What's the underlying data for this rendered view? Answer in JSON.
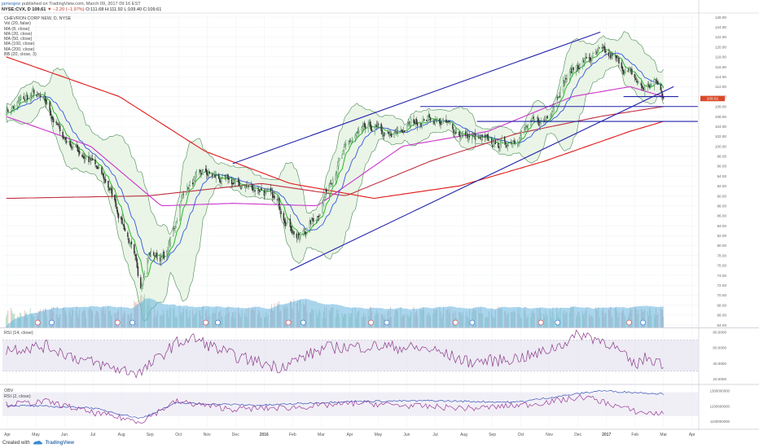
{
  "header": {
    "user": "jamesjew",
    "published": "published on TradingView.com, March 09, 2017 09:16 EST",
    "ticker_line_prefix": "NYSE:CVX, D 109.61",
    "change": "▼ −2.20 (−1.97%)",
    "ohlc": "O:111.68 H:111.92 L:109.40 C:109.61"
  },
  "indicators": [
    "CHEVRON CORP NEW, D, NYSE",
    "Vol (20, false)",
    "MA (8, close)",
    "MA (20, close)",
    "MA (50, close)",
    "MA (100, close)",
    "MA (200, close)",
    "BB (20, close, 3)"
  ],
  "panels": {
    "rsi14_label": "RSI (14, close)",
    "obv_label": "OBV",
    "rsi2_label": "RSI (2, close)"
  },
  "footer": {
    "created_with": "Created with",
    "brand": "TradingView"
  },
  "colors": {
    "ma8": "#2db32d",
    "ma20": "#3355dd",
    "ma50": "#cc33cc",
    "ma100": "#c03040",
    "ma200": "#e01818",
    "bb": "#4a8a55",
    "bb_fill": "#e3f1df",
    "channel": "#2222aa",
    "volume": "#64b2df",
    "rsi": "#8a3a8a",
    "band": "#e6e2ef",
    "price_tag": "#d94a2a",
    "up": "#2d7a3d",
    "down": "#333333"
  },
  "chart_data": [
    {
      "type": "line",
      "title": "CHEVRON CORP NEW, D, NYSE",
      "x_ticks": [
        "Apr",
        "May",
        "Jun",
        "Jul",
        "Aug",
        "Sep",
        "Oct",
        "Nov",
        "Dec",
        "2016",
        "Feb",
        "Mar",
        "Apr",
        "May",
        "Jun",
        "Jul",
        "Aug",
        "Sep",
        "Oct",
        "Nov",
        "Dec",
        "2017",
        "Feb",
        "Mar",
        "Apr"
      ],
      "y_ticks": [
        64.0,
        66.0,
        68.0,
        70.0,
        72.0,
        74.0,
        76.0,
        78.0,
        80.0,
        82.0,
        84.0,
        86.0,
        88.0,
        90.0,
        92.0,
        94.0,
        96.0,
        98.0,
        100.0,
        102.0,
        104.0,
        106.0,
        108.0,
        110.0,
        112.0,
        114.0,
        116.0,
        118.0,
        120.0,
        122.0,
        124.0,
        126.0
      ],
      "ylim": [
        63.5,
        126.5
      ],
      "last_price": "109.61",
      "price_series": {
        "name": "CVX close (approx.)",
        "x": [
          "2015-04-01",
          "2015-05-01",
          "2015-05-15",
          "2015-06-01",
          "2015-07-01",
          "2015-07-20",
          "2015-08-10",
          "2015-08-24",
          "2015-09-01",
          "2015-09-20",
          "2015-10-10",
          "2015-11-01",
          "2015-11-20",
          "2015-12-10",
          "2016-01-01",
          "2016-01-20",
          "2016-02-10",
          "2016-03-01",
          "2016-03-20",
          "2016-04-10",
          "2016-05-01",
          "2016-05-20",
          "2016-06-10",
          "2016-06-30",
          "2016-07-20",
          "2016-08-10",
          "2016-09-01",
          "2016-09-20",
          "2016-10-10",
          "2016-11-01",
          "2016-11-20",
          "2016-12-10",
          "2016-12-31",
          "2017-01-15",
          "2017-02-01",
          "2017-02-15",
          "2017-03-01",
          "2017-03-09"
        ],
        "values": [
          107.0,
          110.5,
          108.0,
          102.0,
          97.0,
          92.0,
          82.0,
          72.0,
          78.5,
          77.5,
          91.5,
          94.5,
          93.0,
          92.0,
          91.5,
          88.0,
          81.5,
          86.0,
          95.5,
          102.0,
          103.5,
          101.5,
          104.5,
          106.0,
          104.0,
          102.0,
          100.5,
          100.5,
          103.5,
          105.0,
          113.0,
          117.0,
          118.5,
          117.5,
          114.5,
          111.5,
          113.0,
          109.61
        ]
      },
      "channel_lines": [
        {
          "name": "upper channel",
          "x": [
            "2015-12-01",
            "2016-12-31"
          ],
          "values": [
            96.5,
            123.0
          ]
        },
        {
          "name": "lower channel",
          "x": [
            "2016-02-01",
            "2017-03-20"
          ],
          "values": [
            75.0,
            112.0
          ]
        },
        {
          "name": "horizontal 108",
          "x": [
            "2016-06-20",
            "2017-04-15"
          ],
          "values": [
            108.0,
            108.0
          ]
        },
        {
          "name": "horizontal 105",
          "x": [
            "2016-08-20",
            "2017-04-15"
          ],
          "values": [
            105.0,
            105.0
          ]
        },
        {
          "name": "horizontal 110",
          "x": [
            "2017-01-25",
            "2017-03-25"
          ],
          "values": [
            110.0,
            110.0
          ]
        }
      ],
      "moving_averages": [
        {
          "name": "MA (200, close)",
          "x": [
            "2015-04-01",
            "2015-08-01",
            "2015-11-01",
            "2016-02-01",
            "2016-05-01",
            "2016-08-01",
            "2016-11-01",
            "2017-02-01",
            "2017-03-09"
          ],
          "values": [
            118.0,
            110.0,
            99.0,
            92.5,
            89.5,
            92.0,
            97.0,
            103.0,
            105.0
          ]
        },
        {
          "name": "MA (100, close)",
          "x": [
            "2015-04-01",
            "2015-09-01",
            "2016-01-01",
            "2016-04-01",
            "2016-07-01",
            "2016-10-01",
            "2016-12-31",
            "2017-03-09"
          ],
          "values": [
            89.5,
            90.0,
            92.5,
            90.0,
            97.0,
            102.5,
            106.0,
            108.0
          ]
        },
        {
          "name": "MA (50, close)",
          "x": [
            "2015-04-01",
            "2015-07-01",
            "2015-09-15",
            "2015-12-01",
            "2016-03-01",
            "2016-06-01",
            "2016-09-01",
            "2016-12-01",
            "2017-02-01",
            "2017-03-09"
          ],
          "values": [
            106.0,
            100.0,
            88.0,
            88.5,
            88.0,
            100.0,
            103.0,
            110.0,
            112.0,
            110.0
          ]
        }
      ]
    },
    {
      "type": "bar",
      "title": "Vol (20, false)",
      "note": "volume histogram with 20-day average area, no axis values printed"
    },
    {
      "type": "line",
      "title": "RSI (14, close)",
      "y_ticks": [
        20.0,
        40.0,
        60.0,
        80.0
      ],
      "ylim": [
        15,
        85
      ],
      "band": [
        30,
        70
      ],
      "series": [
        {
          "name": "RSI (14, close)",
          "x": [
            "2015-04-01",
            "2015-05-15",
            "2015-06-20",
            "2015-08-01",
            "2015-08-24",
            "2015-10-01",
            "2015-10-20",
            "2015-12-01",
            "2016-01-20",
            "2016-03-10",
            "2016-05-10",
            "2016-07-01",
            "2016-08-10",
            "2016-09-15",
            "2016-10-20",
            "2016-11-15",
            "2016-12-10",
            "2017-01-10",
            "2017-02-05",
            "2017-02-20",
            "2017-03-09"
          ],
          "values": [
            58,
            62,
            45,
            32,
            28,
            66,
            72,
            50,
            35,
            60,
            62,
            58,
            42,
            44,
            50,
            62,
            78,
            66,
            38,
            48,
            40
          ]
        }
      ]
    },
    {
      "type": "line",
      "title": "OBV / RSI (2, close)",
      "y_ticks": [
        1100000000,
        1200000000,
        1300000000
      ],
      "ylim": [
        1060000000,
        1330000000
      ],
      "series": [
        {
          "name": "OBV",
          "x": [
            "2015-04-01",
            "2015-07-01",
            "2015-08-24",
            "2015-10-01",
            "2016-01-01",
            "2016-04-01",
            "2016-07-01",
            "2016-10-01",
            "2016-12-31",
            "2017-02-01",
            "2017-03-09"
          ],
          "values": [
            1205000000,
            1190000000,
            1120000000,
            1220000000,
            1205000000,
            1230000000,
            1235000000,
            1225000000,
            1300000000,
            1290000000,
            1280000000
          ]
        },
        {
          "name": "RSI (2, close)",
          "x": [
            "2015-04-01",
            "2015-05-15",
            "2015-07-01",
            "2015-08-24",
            "2015-10-01",
            "2015-12-01",
            "2016-02-01",
            "2016-04-15",
            "2016-06-15",
            "2016-08-15",
            "2016-10-15",
            "2016-12-15",
            "2017-02-10",
            "2017-03-09"
          ],
          "values": [
            1210000000,
            1230000000,
            1160000000,
            1100000000,
            1230000000,
            1180000000,
            1190000000,
            1220000000,
            1200000000,
            1185000000,
            1210000000,
            1260000000,
            1160000000,
            1150000000
          ]
        }
      ]
    }
  ]
}
